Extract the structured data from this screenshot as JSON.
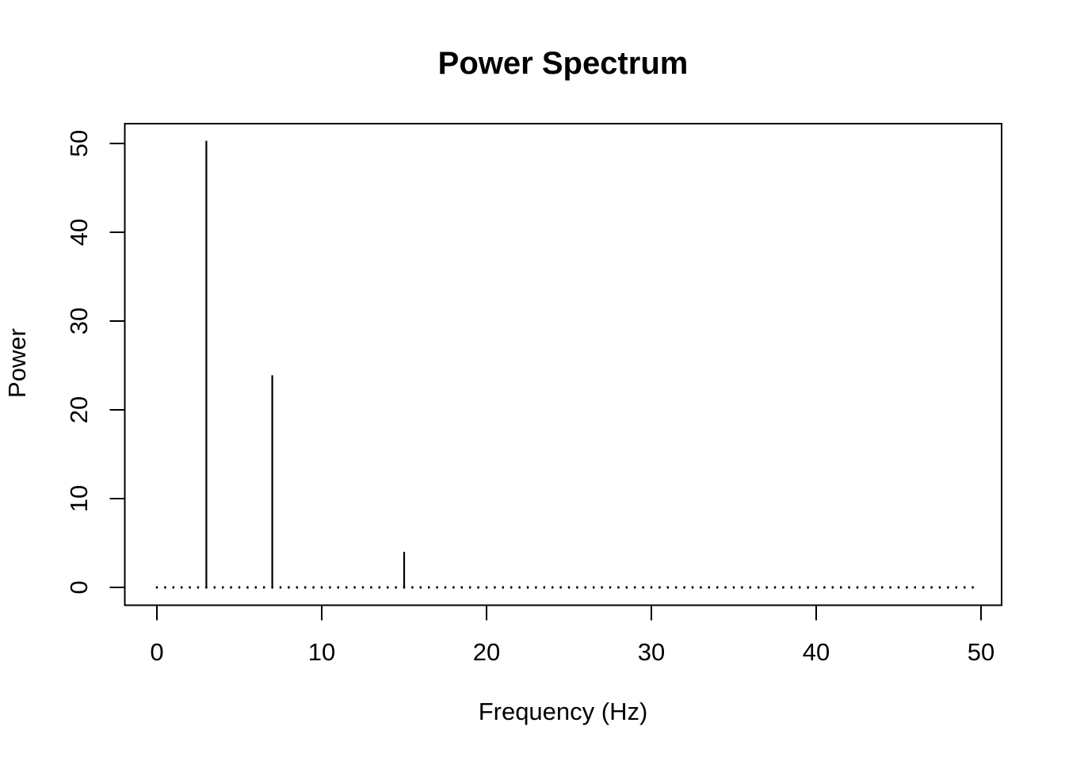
{
  "figure": {
    "background_color": "#ffffff",
    "foreground_color": "#000000"
  },
  "chart_data": {
    "type": "bar",
    "subtype": "impulse-stem plot (R base graphics, type='h')",
    "title": "Power Spectrum",
    "xlabel": "Frequency (Hz)",
    "ylabel": "Power",
    "xlim": [
      0,
      50
    ],
    "ylim": [
      0,
      50
    ],
    "x_ticks": [
      0,
      10,
      20,
      30,
      40,
      50
    ],
    "y_ticks": [
      0,
      10,
      20,
      30,
      40,
      50
    ],
    "grid": false,
    "legend": "none",
    "line_color": "#000000",
    "peaks": [
      {
        "frequency": 3,
        "power": 50.3
      },
      {
        "frequency": 7,
        "power": 23.9
      },
      {
        "frequency": 15,
        "power": 4.0
      }
    ],
    "baseline": {
      "freq_start": 0,
      "freq_end": 49.5,
      "freq_step": 0.5,
      "power": 0
    }
  }
}
